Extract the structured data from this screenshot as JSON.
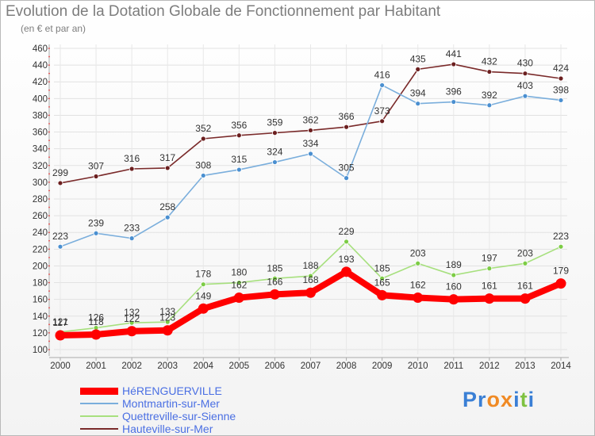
{
  "title": "Evolution de la Dotation Globale de Fonctionnement par Habitant",
  "subtitle": "(en € et par an)",
  "logo": {
    "text": "Proxiti",
    "letters": [
      "P",
      "r",
      "o",
      "x",
      "i",
      "t",
      "i"
    ],
    "colors": [
      "#3a7fd5",
      "#3a7fd5",
      "#f08a24",
      "#f08a24",
      "#3a7fd5",
      "#7fc241",
      "#3a7fd5"
    ]
  },
  "chart_data": {
    "type": "line",
    "x": [
      "2000",
      "2001",
      "2002",
      "2003",
      "2004",
      "2005",
      "2006",
      "2007",
      "2008",
      "2009",
      "2010",
      "2011",
      "2012",
      "2013",
      "2014"
    ],
    "ylim": [
      100,
      460
    ],
    "yticks": [
      100,
      120,
      140,
      160,
      180,
      200,
      220,
      240,
      260,
      280,
      300,
      320,
      340,
      360,
      380,
      400,
      420,
      440,
      460
    ],
    "grid": true,
    "legend_position": "bottom-left",
    "series": [
      {
        "name": "Hauteville-sur-Mer",
        "color": "#7a2a2a",
        "marker": "#6b1f1f",
        "values": [
          299,
          307,
          316,
          317,
          352,
          356,
          359,
          362,
          366,
          373,
          435,
          441,
          432,
          430,
          424
        ]
      },
      {
        "name": "Montmartin-sur-Mer",
        "color": "#7aaedc",
        "marker": "#4a8fd0",
        "values": [
          223,
          239,
          233,
          258,
          308,
          315,
          324,
          334,
          305,
          416,
          394,
          396,
          392,
          403,
          398
        ]
      },
      {
        "name": "Quettreville-sur-Sienne",
        "color": "#a7e07e",
        "marker": "#7ccc45",
        "values": [
          121,
          126,
          132,
          133,
          178,
          180,
          185,
          188,
          229,
          185,
          203,
          189,
          197,
          203,
          223
        ]
      },
      {
        "name": "HéRENGUERVILLE",
        "color": "#ff0000",
        "marker": "#ff0000",
        "thick": true,
        "values": [
          117,
          118,
          122,
          123,
          149,
          162,
          166,
          168,
          193,
          165,
          162,
          160,
          161,
          161,
          179
        ]
      }
    ]
  }
}
